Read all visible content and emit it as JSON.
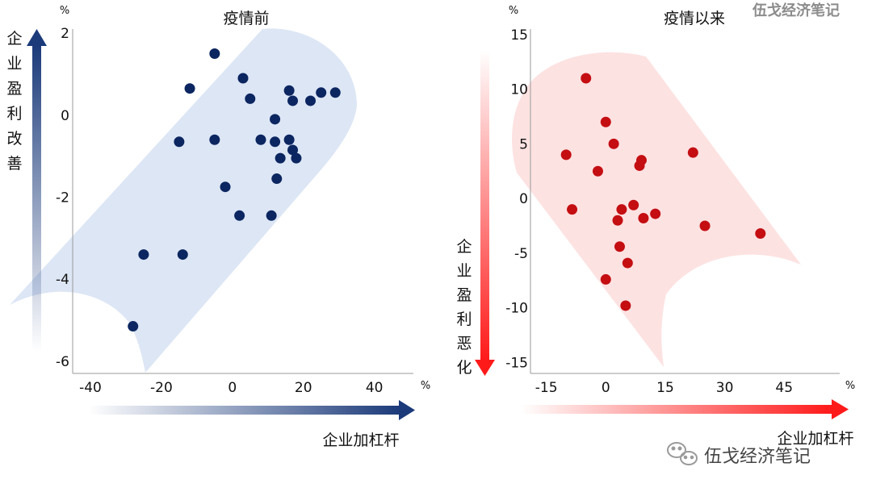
{
  "watermark": "伍戈经济笔记",
  "footer": {
    "brand": "伍戈经济笔记"
  },
  "colors": {
    "left_dot": "#0b2660",
    "right_dot": "#c40e12",
    "left_band": "#dde6f5",
    "right_band": "#fde2e2",
    "left_arrow": "#1b3a7a",
    "right_arrow": "#ff1a1a"
  },
  "left_axis_label": [
    "企",
    "业",
    "盈",
    "利",
    "改",
    "善"
  ],
  "right_axis_label": [
    "企",
    "业",
    "盈",
    "利",
    "恶",
    "化"
  ],
  "chart_data": [
    {
      "type": "scatter",
      "title": "疫情前",
      "xlabel": "企业加杠杆",
      "ylabel": "企业盈利改善",
      "x_unit": "%",
      "y_unit": "%",
      "xlim": [
        -45,
        51
      ],
      "ylim": [
        -6.3,
        2.1
      ],
      "xticks": [
        "-40",
        "-20",
        "0",
        "20",
        "40"
      ],
      "yticks": [
        "2",
        "0",
        "-2",
        "-4",
        "-6"
      ],
      "points": [
        {
          "x": -5,
          "y": 1.5
        },
        {
          "x": -12,
          "y": 0.65
        },
        {
          "x": 3,
          "y": 0.9
        },
        {
          "x": 5,
          "y": 0.4
        },
        {
          "x": 16,
          "y": 0.6
        },
        {
          "x": 17,
          "y": 0.35
        },
        {
          "x": 25,
          "y": 0.55
        },
        {
          "x": 29,
          "y": 0.55
        },
        {
          "x": 22,
          "y": 0.35
        },
        {
          "x": 12,
          "y": -0.1
        },
        {
          "x": -15,
          "y": -0.65
        },
        {
          "x": -5,
          "y": -0.6
        },
        {
          "x": 8,
          "y": -0.6
        },
        {
          "x": 12,
          "y": -0.65
        },
        {
          "x": 16,
          "y": -0.6
        },
        {
          "x": 17,
          "y": -0.85
        },
        {
          "x": 13.5,
          "y": -1.05
        },
        {
          "x": 18,
          "y": -1.05
        },
        {
          "x": 12.5,
          "y": -1.55
        },
        {
          "x": -2,
          "y": -1.75
        },
        {
          "x": 2,
          "y": -2.45
        },
        {
          "x": 11,
          "y": -2.45
        },
        {
          "x": -25,
          "y": -3.4
        },
        {
          "x": -14,
          "y": -3.4
        },
        {
          "x": -28,
          "y": -5.15
        }
      ]
    },
    {
      "type": "scatter",
      "title": "疫情以来",
      "xlabel": "企业加杠杆",
      "ylabel": "企业盈利恶化",
      "x_unit": "%",
      "y_unit": "%",
      "xlim": [
        -19,
        59
      ],
      "ylim": [
        -16,
        15.5
      ],
      "xticks": [
        "-15",
        "0",
        "15",
        "30",
        "45"
      ],
      "yticks": [
        "15",
        "10",
        "5",
        "0",
        "-5",
        "-10",
        "-15"
      ],
      "points": [
        {
          "x": -5,
          "y": 11
        },
        {
          "x": 0,
          "y": 7
        },
        {
          "x": 2,
          "y": 5
        },
        {
          "x": -10,
          "y": 4
        },
        {
          "x": 9,
          "y": 3.5
        },
        {
          "x": 8.5,
          "y": 3
        },
        {
          "x": 22,
          "y": 4.2
        },
        {
          "x": -2,
          "y": 2.5
        },
        {
          "x": -8.5,
          "y": -1
        },
        {
          "x": 4,
          "y": -1
        },
        {
          "x": 7,
          "y": -0.6
        },
        {
          "x": 12.5,
          "y": -1.4
        },
        {
          "x": 3,
          "y": -2
        },
        {
          "x": 9.5,
          "y": -1.8
        },
        {
          "x": 25,
          "y": -2.5
        },
        {
          "x": 39,
          "y": -3.2
        },
        {
          "x": 3.5,
          "y": -4.4
        },
        {
          "x": 5.5,
          "y": -5.9
        },
        {
          "x": 0,
          "y": -7.4
        },
        {
          "x": 5,
          "y": -9.8
        }
      ]
    }
  ]
}
